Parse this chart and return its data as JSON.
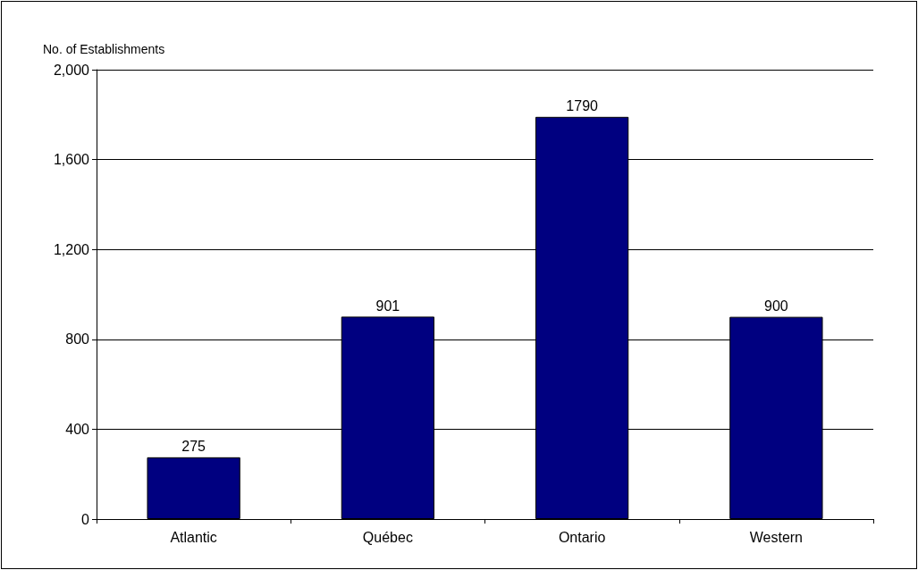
{
  "chart_data": {
    "type": "bar",
    "ylabel": "No. of Establishments",
    "categories": [
      "Atlantic",
      "Québec",
      "Ontario",
      "Western"
    ],
    "values": [
      275,
      901,
      1790,
      900
    ],
    "color": "#000080",
    "ylim": [
      0,
      2000
    ],
    "yticks": [
      {
        "value": 0,
        "label": "0"
      },
      {
        "value": 400,
        "label": "400"
      },
      {
        "value": 800,
        "label": "800"
      },
      {
        "value": 1200,
        "label": "1,200"
      },
      {
        "value": 1600,
        "label": "1,600"
      },
      {
        "value": 2000,
        "label": "2,000"
      }
    ],
    "grid": "y",
    "data_labels": true
  }
}
